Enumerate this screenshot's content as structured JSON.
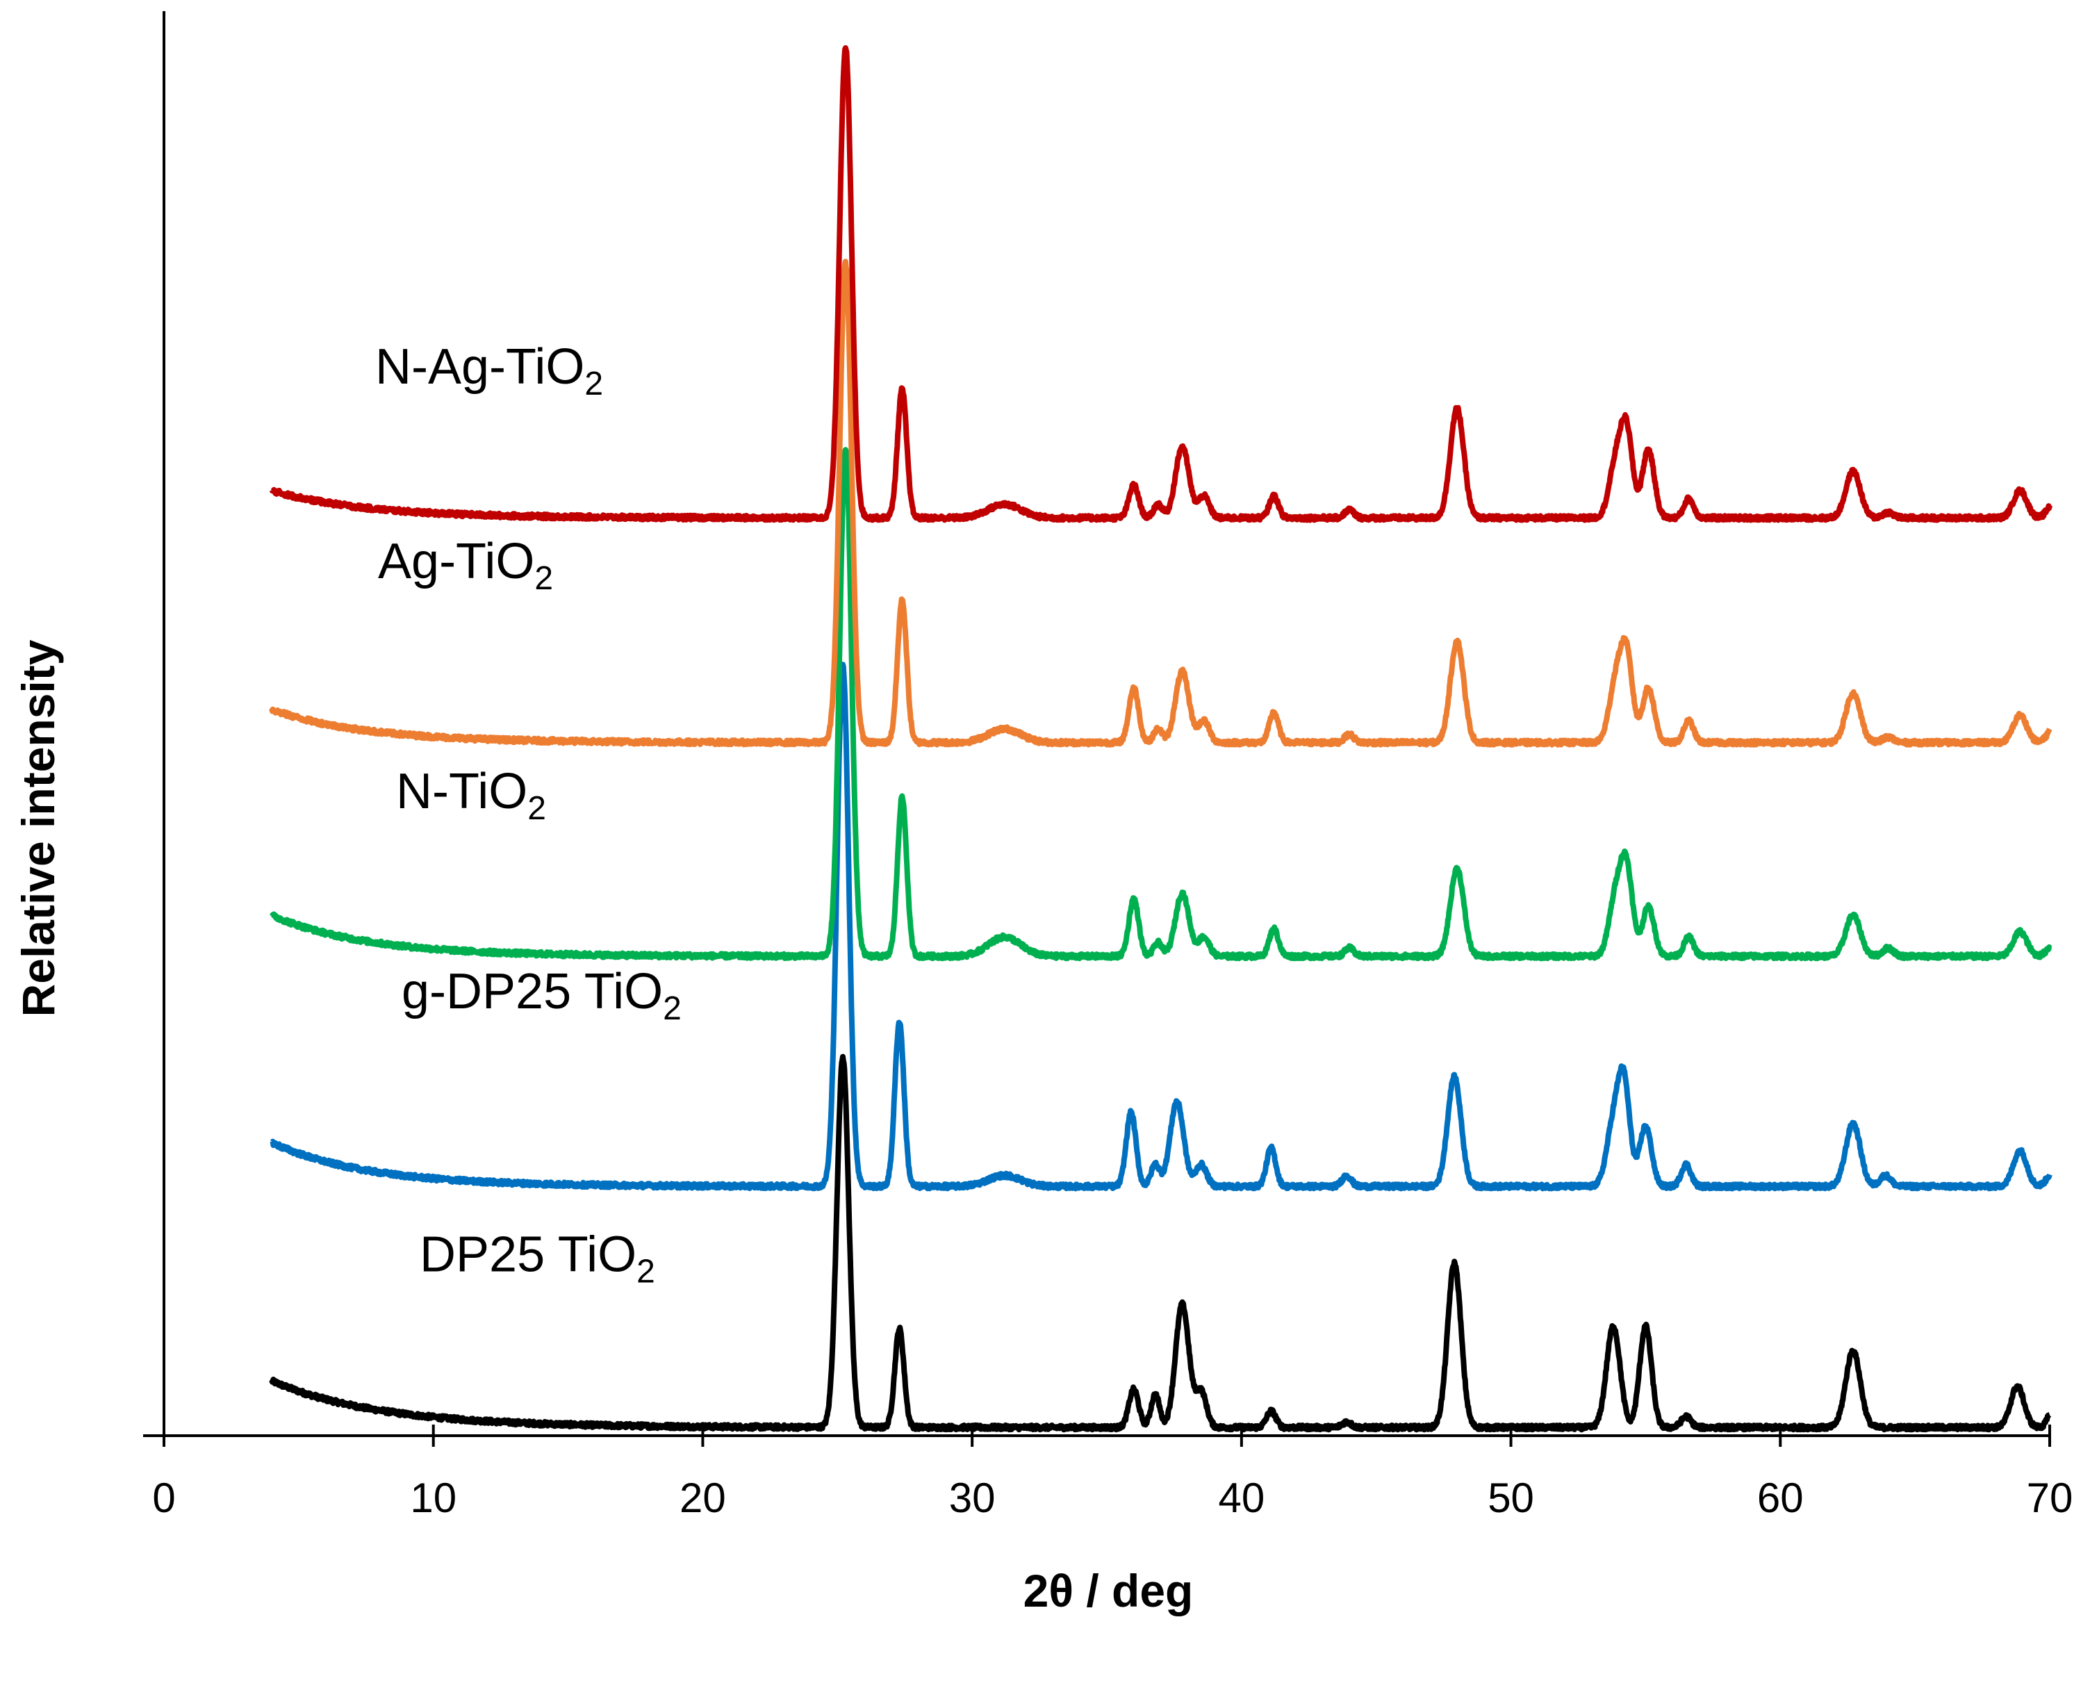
{
  "chart_data": {
    "type": "line",
    "title": "",
    "xlabel": "2θ / deg",
    "ylabel": "Relative intensity",
    "xlim": [
      0,
      70
    ],
    "ylim": [
      0,
      5.2
    ],
    "x_ticks": [
      "0",
      "10",
      "20",
      "30",
      "40",
      "50",
      "60",
      "70"
    ],
    "x_tick_values": [
      0,
      10,
      20,
      30,
      40,
      50,
      60,
      70
    ],
    "grid": false,
    "legend": "inline labels left of each trace",
    "x_range_measured": [
      4,
      70
    ],
    "series": [
      {
        "name": "N-Ag-TiO2",
        "label_main": "N-Ag-TiO",
        "label_sub": "2",
        "color": "#c00000",
        "offset": 3.32,
        "baseline_start": 0.1,
        "baseline_decay_deg": 3.5,
        "peaks": [
          [
            25.3,
            1.72,
            0.22
          ],
          [
            27.4,
            0.47,
            0.17
          ],
          [
            31.2,
            0.05,
            0.6
          ],
          [
            36.0,
            0.12,
            0.18
          ],
          [
            36.9,
            0.05,
            0.16
          ],
          [
            37.8,
            0.26,
            0.25
          ],
          [
            38.6,
            0.08,
            0.2
          ],
          [
            41.2,
            0.08,
            0.17
          ],
          [
            44.0,
            0.03,
            0.17
          ],
          [
            48.0,
            0.4,
            0.25
          ],
          [
            53.9,
            0.2,
            0.25
          ],
          [
            54.3,
            0.3,
            0.22
          ],
          [
            55.1,
            0.25,
            0.22
          ],
          [
            56.6,
            0.07,
            0.18
          ],
          [
            62.7,
            0.17,
            0.27
          ],
          [
            64.0,
            0.02,
            0.2
          ],
          [
            68.9,
            0.1,
            0.25
          ],
          [
            70.1,
            0.05,
            0.2
          ]
        ]
      },
      {
        "name": "Ag-TiO2",
        "label_main": "Ag-TiO",
        "label_sub": "2",
        "color": "#ed7d31",
        "offset": 2.5,
        "baseline_start": 0.12,
        "baseline_decay_deg": 3.5,
        "peaks": [
          [
            25.3,
            1.75,
            0.22
          ],
          [
            27.4,
            0.52,
            0.17
          ],
          [
            31.2,
            0.05,
            0.6
          ],
          [
            36.0,
            0.2,
            0.18
          ],
          [
            36.9,
            0.05,
            0.16
          ],
          [
            37.8,
            0.26,
            0.25
          ],
          [
            38.6,
            0.08,
            0.2
          ],
          [
            41.2,
            0.11,
            0.17
          ],
          [
            44.0,
            0.03,
            0.17
          ],
          [
            48.0,
            0.37,
            0.25
          ],
          [
            53.9,
            0.22,
            0.25
          ],
          [
            54.3,
            0.3,
            0.22
          ],
          [
            55.1,
            0.2,
            0.22
          ],
          [
            56.6,
            0.08,
            0.18
          ],
          [
            62.7,
            0.18,
            0.27
          ],
          [
            64.0,
            0.02,
            0.2
          ],
          [
            68.9,
            0.1,
            0.25
          ],
          [
            70.1,
            0.05,
            0.2
          ]
        ]
      },
      {
        "name": "N-TiO2",
        "label_main": "N-TiO",
        "label_sub": "2",
        "color": "#00b050",
        "offset": 1.72,
        "baseline_start": 0.15,
        "baseline_decay_deg": 3.5,
        "peaks": [
          [
            25.3,
            1.85,
            0.22
          ],
          [
            27.4,
            0.58,
            0.17
          ],
          [
            31.2,
            0.07,
            0.6
          ],
          [
            36.0,
            0.21,
            0.18
          ],
          [
            36.9,
            0.05,
            0.16
          ],
          [
            37.8,
            0.23,
            0.25
          ],
          [
            38.6,
            0.07,
            0.2
          ],
          [
            41.2,
            0.1,
            0.17
          ],
          [
            44.0,
            0.03,
            0.17
          ],
          [
            48.0,
            0.32,
            0.25
          ],
          [
            53.9,
            0.22,
            0.25
          ],
          [
            54.3,
            0.3,
            0.22
          ],
          [
            55.1,
            0.18,
            0.22
          ],
          [
            56.6,
            0.07,
            0.18
          ],
          [
            62.7,
            0.15,
            0.27
          ],
          [
            64.0,
            0.03,
            0.2
          ],
          [
            68.9,
            0.09,
            0.25
          ],
          [
            70.1,
            0.04,
            0.2
          ]
        ]
      },
      {
        "name": "g-DP25 TiO2",
        "label_main": "g-DP25 TiO",
        "label_sub": "2",
        "color": "#0070c0",
        "offset": 0.88,
        "baseline_start": 0.16,
        "baseline_decay_deg": 3.5,
        "peaks": [
          [
            25.2,
            1.9,
            0.22
          ],
          [
            27.3,
            0.6,
            0.17
          ],
          [
            31.2,
            0.04,
            0.6
          ],
          [
            35.9,
            0.27,
            0.18
          ],
          [
            36.8,
            0.08,
            0.16
          ],
          [
            37.6,
            0.31,
            0.25
          ],
          [
            38.5,
            0.08,
            0.2
          ],
          [
            41.1,
            0.14,
            0.17
          ],
          [
            43.9,
            0.04,
            0.17
          ],
          [
            47.9,
            0.4,
            0.25
          ],
          [
            53.8,
            0.22,
            0.25
          ],
          [
            54.2,
            0.36,
            0.22
          ],
          [
            55.0,
            0.22,
            0.22
          ],
          [
            56.5,
            0.08,
            0.18
          ],
          [
            62.7,
            0.23,
            0.27
          ],
          [
            63.9,
            0.04,
            0.2
          ],
          [
            68.9,
            0.13,
            0.25
          ],
          [
            70.1,
            0.05,
            0.2
          ]
        ]
      },
      {
        "name": "DP25 TiO2",
        "label_main": "DP25 TiO",
        "label_sub": "2",
        "color": "#000000",
        "offset": 0.0,
        "baseline_start": 0.17,
        "baseline_decay_deg": 4.0,
        "peaks": [
          [
            25.2,
            1.35,
            0.22
          ],
          [
            27.3,
            0.36,
            0.17
          ],
          [
            36.0,
            0.14,
            0.18
          ],
          [
            36.8,
            0.12,
            0.16
          ],
          [
            37.8,
            0.45,
            0.25
          ],
          [
            38.5,
            0.13,
            0.2
          ],
          [
            41.1,
            0.06,
            0.17
          ],
          [
            43.9,
            0.02,
            0.17
          ],
          [
            47.9,
            0.6,
            0.25
          ],
          [
            53.8,
            0.37,
            0.25
          ],
          [
            55.0,
            0.37,
            0.22
          ],
          [
            56.5,
            0.04,
            0.18
          ],
          [
            62.7,
            0.28,
            0.27
          ],
          [
            68.8,
            0.15,
            0.25
          ],
          [
            70.2,
            0.09,
            0.2
          ]
        ]
      }
    ]
  }
}
